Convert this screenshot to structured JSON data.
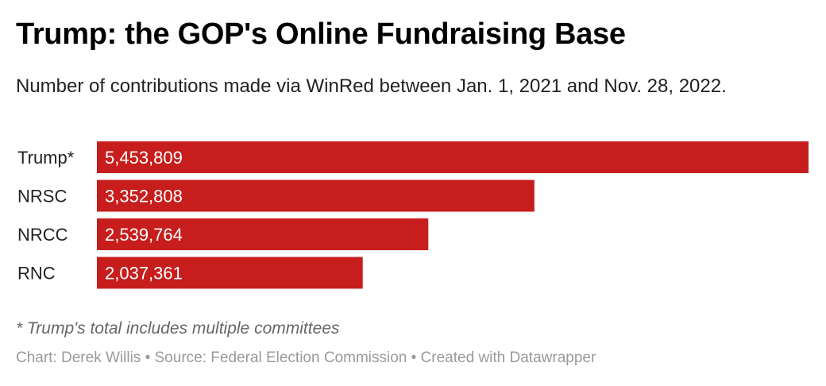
{
  "header": {
    "title": "Trump: the GOP's Online Fundraising Base",
    "subtitle": "Number of contributions made via WinRed between Jan. 1, 2021 and Nov. 28, 2022."
  },
  "chart_data": {
    "type": "bar",
    "orientation": "horizontal",
    "categories": [
      "Trump*",
      "NRSC",
      "NRCC",
      "RNC"
    ],
    "values": [
      5453809,
      3352808,
      2539764,
      2037361
    ],
    "value_labels": [
      "5,453,809",
      "3,352,808",
      "2,539,764",
      "2,037,361"
    ],
    "color": "#c71e1d",
    "label_color": "#ffffff",
    "grid": false,
    "legend": "none"
  },
  "notes": "* Trump's total includes multiple committees",
  "footer": {
    "credit": "Chart: Derek Willis • Source: Federal Election Commission • Created with Datawrapper"
  }
}
